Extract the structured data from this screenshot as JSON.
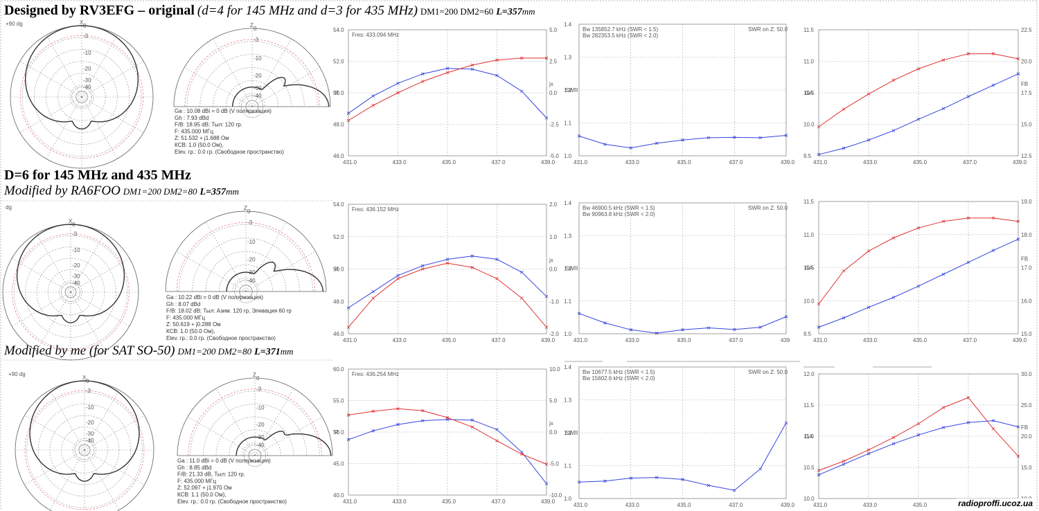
{
  "headings": {
    "row1": {
      "main": "Designed by RV3EFG – original",
      "italic": "(d=4 for 145 MHz and d=3 for 435 MHz)",
      "dm": "DM1=200 DM2=60",
      "l": "L=357",
      "unit": "mm"
    },
    "row2a": {
      "main": "D=6 for 145 MHz and 435 MHz"
    },
    "row2b": {
      "italic": "Modified by RA6FOO",
      "dm": "DM1=200 DM2=80",
      "l": "L=357",
      "unit": "mm"
    },
    "row3": {
      "italic": "Modified by me (for SAT SO-50)",
      "dm": "DM1=200 DM2=80",
      "l": "L=371",
      "unit": "mm"
    }
  },
  "watermark": "radioproffi.ucoz.ua",
  "colors": {
    "blue": "#3344dd",
    "red": "#e03030",
    "pattern": "#333333",
    "grid": "#999999"
  },
  "rows": [
    {
      "polar_label": "+90 dg",
      "az_ticks": [
        "0",
        "-3",
        "-10",
        "-20",
        "-30",
        "-40"
      ],
      "el_ticks": [
        "0",
        "-3",
        "-10",
        "-20",
        "-30",
        "-40"
      ],
      "az_axis_label": "X",
      "el_axis_label": "Z",
      "info": [
        "Ga : 10.08 dBi = 0 dB  (V поляризация)",
        "Gh : 7.93 dBd",
        "F/B: 18.95 dB; Тыл: 120 гр.",
        "F: 435.000 МГц",
        "Z: 51.532 + j1.688 Ом",
        "КСВ: 1.0 (50.0 Ом),",
        "Elev. гр.: 0.0 гр. (Свободное пространство)"
      ]
    },
    {
      "polar_label": "dg",
      "az_ticks": [
        "0",
        "-3",
        "-10",
        "-20",
        "-30",
        "-40"
      ],
      "el_ticks": [
        "0",
        "-3",
        "-10",
        "-20",
        "-30",
        "-40"
      ],
      "az_axis_label": "X",
      "el_axis_label": "Z",
      "info": [
        "Ga : 10.22 dBi = 0 dB  (V поляризация)",
        "Gh : 8.07 dBd",
        "F/B: 18.02 dB; Тыл: Азим. 120 гр, Элевация 60 гр",
        "F: 435.000 МГц",
        "Z: 50.619 + j0.288 Ом",
        "КСВ: 1.0 (50.0 Ом),",
        "Elev. гр.: 0.0 гр. (Свободное пространство)"
      ]
    },
    {
      "polar_label": "+90 dg",
      "az_ticks": [
        "0",
        "-3",
        "-10",
        "-20",
        "-30",
        "-40"
      ],
      "el_ticks": [
        "0",
        "-3",
        "-10",
        "-20",
        "-30",
        "-40"
      ],
      "az_axis_label": "X",
      "el_axis_label": "Z",
      "info": [
        "Ga : 11.0 dBi = 0 dB  (V поляризация)",
        "Gh : 8.85 dBd",
        "F/B: 21.33 dB, Тыл: 120 гр.",
        "F: 435.000 МГц",
        "Z: 52.097 + j1.970 Ом",
        "КСВ: 1.1 (50.0 Ом),",
        "Elev. гр.: 0.0 гр. (Свободное пространство)"
      ]
    }
  ],
  "chart_data": [
    {
      "type": "line",
      "row": 0,
      "kind": "rjx",
      "x": [
        431,
        432,
        433,
        434,
        435,
        436,
        437,
        438,
        439
      ],
      "xticks": [
        "431.0",
        "433.0",
        "435.0",
        "437.0",
        "439.0"
      ],
      "annotation": "Fres: 433.094 MHz",
      "left": {
        "label": "R",
        "ticks": [
          "54.0",
          "52.0",
          "50.0",
          "48.0",
          "46.0"
        ],
        "ylim": [
          46,
          54
        ],
        "values": [
          48.7,
          49.8,
          50.6,
          51.2,
          51.55,
          51.5,
          51.1,
          50.1,
          48.4
        ]
      },
      "right": {
        "label": "jx",
        "ticks": [
          "5.0",
          "2.5",
          "0.0",
          "-2.5",
          "-5.0"
        ],
        "ylim": [
          -5,
          5
        ],
        "values": [
          -2.2,
          -1.0,
          0.0,
          0.9,
          1.6,
          2.2,
          2.6,
          2.75,
          2.75
        ]
      }
    },
    {
      "type": "line",
      "row": 0,
      "kind": "swr",
      "x": [
        431,
        432,
        433,
        434,
        435,
        436,
        437,
        438,
        439
      ],
      "xticks": [
        "431.0",
        "433.0",
        "435.0",
        "437.0",
        "439.0"
      ],
      "annotation": [
        "Bw 135852.7 kHz (SWR < 1.5)",
        "Bw 282353.5 kHz (SWR < 2.0)"
      ],
      "note": "SWR on Z: 50.0",
      "left": {
        "label": "SWR",
        "ticks": [
          "1.4",
          "1.3",
          "1.2",
          "1.1",
          "1.0"
        ],
        "ylim": [
          1,
          1.4
        ],
        "values": [
          1.06,
          1.035,
          1.024,
          1.038,
          1.048,
          1.055,
          1.056,
          1.055,
          1.062
        ]
      }
    },
    {
      "type": "line",
      "row": 0,
      "kind": "gafb",
      "x": [
        431,
        432,
        433,
        434,
        435,
        436,
        437,
        438,
        439
      ],
      "xticks": [
        "431.0",
        "433.0",
        "435.0",
        "437.0",
        "439.0"
      ],
      "left": {
        "label": "GA",
        "ticks": [
          "11.5",
          "11.0",
          "10.5",
          "10.0",
          "9.5"
        ],
        "ylim": [
          9.5,
          11.5
        ],
        "values": [
          9.52,
          9.62,
          9.75,
          9.9,
          10.08,
          10.25,
          10.44,
          10.62,
          10.8
        ]
      },
      "right": {
        "label": "FB",
        "ticks": [
          "22.5",
          "20.0",
          "17.5",
          "15.0",
          "12.5"
        ],
        "ylim": [
          12.5,
          22.5
        ],
        "values": [
          14.8,
          16.2,
          17.4,
          18.5,
          19.4,
          20.1,
          20.6,
          20.6,
          20.2
        ]
      }
    },
    {
      "type": "line",
      "row": 1,
      "kind": "rjx",
      "x": [
        431,
        432,
        433,
        434,
        435,
        436,
        437,
        438,
        439
      ],
      "xticks": [
        "431.0",
        "433.0",
        "435.0",
        "437.0",
        "439.0"
      ],
      "annotation": "Fres: 436.152 MHz",
      "left": {
        "label": "R",
        "ticks": [
          "54.0",
          "52.0",
          "50.0",
          "48.0",
          "46.0"
        ],
        "ylim": [
          46,
          54
        ],
        "values": [
          47.6,
          48.6,
          49.6,
          50.2,
          50.6,
          50.8,
          50.6,
          49.8,
          48.3
        ]
      },
      "right": {
        "label": "jx",
        "ticks": [
          "2.0",
          "1.0",
          "0.0",
          "-1.0",
          "-2.0"
        ],
        "ylim": [
          -2,
          2
        ],
        "values": [
          -1.8,
          -0.9,
          -0.3,
          0.0,
          0.18,
          0.05,
          -0.3,
          -0.9,
          -1.8
        ]
      }
    },
    {
      "type": "line",
      "row": 1,
      "kind": "swr",
      "x": [
        431,
        432,
        433,
        434,
        435,
        436,
        437,
        438,
        439
      ],
      "xticks": [
        "431.0",
        "433.0",
        "435.0",
        "437.0",
        "439"
      ],
      "annotation": [
        "Bw 46900.5 kHz (SWR < 1.5)",
        "Bw 90963.8 kHz (SWR < 2.0)"
      ],
      "note": "SWR on Z: 50.0",
      "left": {
        "label": "SWR",
        "ticks": [
          "1.4",
          "1.3",
          "1.2",
          "1.1",
          "1.0"
        ],
        "ylim": [
          1,
          1.4
        ],
        "values": [
          1.062,
          1.033,
          1.012,
          1.002,
          1.012,
          1.018,
          1.013,
          1.02,
          1.052
        ]
      }
    },
    {
      "type": "line",
      "row": 1,
      "kind": "gafb",
      "x": [
        431,
        432,
        433,
        434,
        435,
        436,
        437,
        438,
        439
      ],
      "xticks": [
        "431.0",
        "433.0",
        "435.0",
        "437.0",
        "439.0"
      ],
      "left": {
        "label": "GA",
        "ticks": [
          "11.5",
          "11.0",
          "10.5",
          "10.0",
          "9.5"
        ],
        "ylim": [
          9.5,
          11.5
        ],
        "values": [
          9.6,
          9.74,
          9.9,
          10.05,
          10.22,
          10.4,
          10.58,
          10.76,
          10.93
        ]
      },
      "right": {
        "label": "FB",
        "ticks": [
          "19.0",
          "18.0",
          "17.0",
          "16.0",
          "15.0"
        ],
        "ylim": [
          15,
          19
        ],
        "values": [
          15.9,
          16.9,
          17.5,
          17.9,
          18.2,
          18.4,
          18.5,
          18.5,
          18.4
        ]
      }
    },
    {
      "type": "line",
      "row": 2,
      "kind": "rjx",
      "x": [
        431,
        432,
        433,
        434,
        435,
        436,
        437,
        438,
        439
      ],
      "xticks": [
        "431.0",
        "433.0",
        "435.0",
        "437.0",
        "439.0"
      ],
      "annotation": "Fres: 436.254 MHz",
      "left": {
        "label": "R",
        "ticks": [
          "60.0",
          "55.0",
          "50.0",
          "45.0",
          "40.0"
        ],
        "ylim": [
          40,
          60
        ],
        "values": [
          48.8,
          50.2,
          51.2,
          51.8,
          52.0,
          51.9,
          50.4,
          46.8,
          41.8
        ]
      },
      "right": {
        "label": "jx",
        "ticks": [
          "10.0",
          "5.0",
          "0.0",
          "-5.0",
          "-10.0"
        ],
        "ylim": [
          -10,
          10
        ],
        "values": [
          2.7,
          3.3,
          3.7,
          3.4,
          2.3,
          0.8,
          -1.4,
          -3.5,
          -5.1
        ]
      }
    },
    {
      "type": "line",
      "row": 2,
      "kind": "swr",
      "x": [
        431,
        432,
        433,
        434,
        435,
        436,
        437,
        438,
        439
      ],
      "xticks": [
        "431.0",
        "433.0",
        "435.0",
        "437.0",
        "439.0"
      ],
      "annotation": [
        "Bw 10677.5 kHz (SWR < 1.5)",
        "Bw 15602.6 kHz (SWR < 2.0)"
      ],
      "note": "SWR on Z: 50.0",
      "left": {
        "label": "SWR",
        "ticks": [
          "1.4",
          "1.3",
          "1.2",
          "1.1",
          "1.0"
        ],
        "ylim": [
          1,
          1.4
        ],
        "values": [
          1.05,
          1.053,
          1.062,
          1.064,
          1.058,
          1.04,
          1.025,
          1.09,
          1.23
        ]
      }
    },
    {
      "type": "line",
      "row": 2,
      "kind": "gafb",
      "x": [
        431,
        432,
        433,
        434,
        435,
        436,
        437,
        438,
        439
      ],
      "xticks": [
        "431.0",
        "433.0",
        "435.0",
        "",
        "439.0"
      ],
      "left": {
        "label": "GA",
        "ticks": [
          "12.0",
          "11.5",
          "11.0",
          "10.5",
          "10.0"
        ],
        "ylim": [
          10,
          12
        ],
        "values": [
          10.38,
          10.55,
          10.72,
          10.88,
          11.02,
          11.14,
          11.22,
          11.25,
          11.15
        ]
      },
      "right": {
        "label": "FB",
        "ticks": [
          "30.0",
          "25.0",
          "20.0",
          "15.0",
          "10.0"
        ],
        "ylim": [
          10,
          30
        ],
        "values": [
          14.5,
          16.0,
          17.8,
          19.8,
          22.0,
          24.6,
          26.2,
          21.2,
          16.8
        ]
      }
    }
  ]
}
